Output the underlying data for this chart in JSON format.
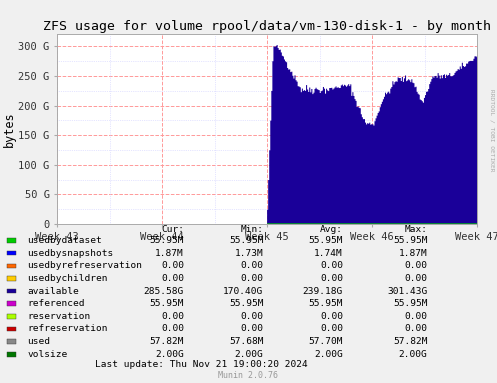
{
  "title": "ZFS usage for volume rpool/data/vm-130-disk-1 - by month",
  "ylabel": "bytes",
  "side_label": "RRDTOOL / TOBI OETIKER",
  "x_tick_labels": [
    "Week 43",
    "Week 44",
    "Week 45",
    "Week 46",
    "Week 47"
  ],
  "y_ticks": [
    0,
    50,
    100,
    150,
    200,
    250,
    300
  ],
  "y_tick_labels": [
    "0",
    "50 G",
    "100 G",
    "150 G",
    "200 G",
    "250 G",
    "300 G"
  ],
  "ylim": [
    0,
    320
  ],
  "bg_color": "#f0f0f0",
  "plot_bg_color": "#ffffff",
  "legend_items": [
    {
      "label": "usedbydataset",
      "color": "#00cc00",
      "cur": "55.95M",
      "min": "55.95M",
      "avg": "55.95M",
      "max": "55.95M"
    },
    {
      "label": "usedbysnapshots",
      "color": "#0000ff",
      "cur": "1.87M",
      "min": "1.73M",
      "avg": "1.74M",
      "max": "1.87M"
    },
    {
      "label": "usedbyrefreservation",
      "color": "#ff6600",
      "cur": "0.00",
      "min": "0.00",
      "avg": "0.00",
      "max": "0.00"
    },
    {
      "label": "usedbychildren",
      "color": "#ffcc00",
      "cur": "0.00",
      "min": "0.00",
      "avg": "0.00",
      "max": "0.00"
    },
    {
      "label": "available",
      "color": "#1a0099",
      "cur": "285.58G",
      "min": "170.40G",
      "avg": "239.18G",
      "max": "301.43G"
    },
    {
      "label": "referenced",
      "color": "#cc00cc",
      "cur": "55.95M",
      "min": "55.95M",
      "avg": "55.95M",
      "max": "55.95M"
    },
    {
      "label": "reservation",
      "color": "#aaff00",
      "cur": "0.00",
      "min": "0.00",
      "avg": "0.00",
      "max": "0.00"
    },
    {
      "label": "refreservation",
      "color": "#cc0000",
      "cur": "0.00",
      "min": "0.00",
      "avg": "0.00",
      "max": "0.00"
    },
    {
      "label": "used",
      "color": "#888888",
      "cur": "57.82M",
      "min": "57.68M",
      "avg": "57.70M",
      "max": "57.82M"
    },
    {
      "label": "volsize",
      "color": "#007700",
      "cur": "2.00G",
      "min": "2.00G",
      "avg": "2.00G",
      "max": "2.00G"
    }
  ],
  "last_update": "Last update: Thu Nov 21 19:00:20 2024",
  "munin_version": "Munin 2.0.76"
}
